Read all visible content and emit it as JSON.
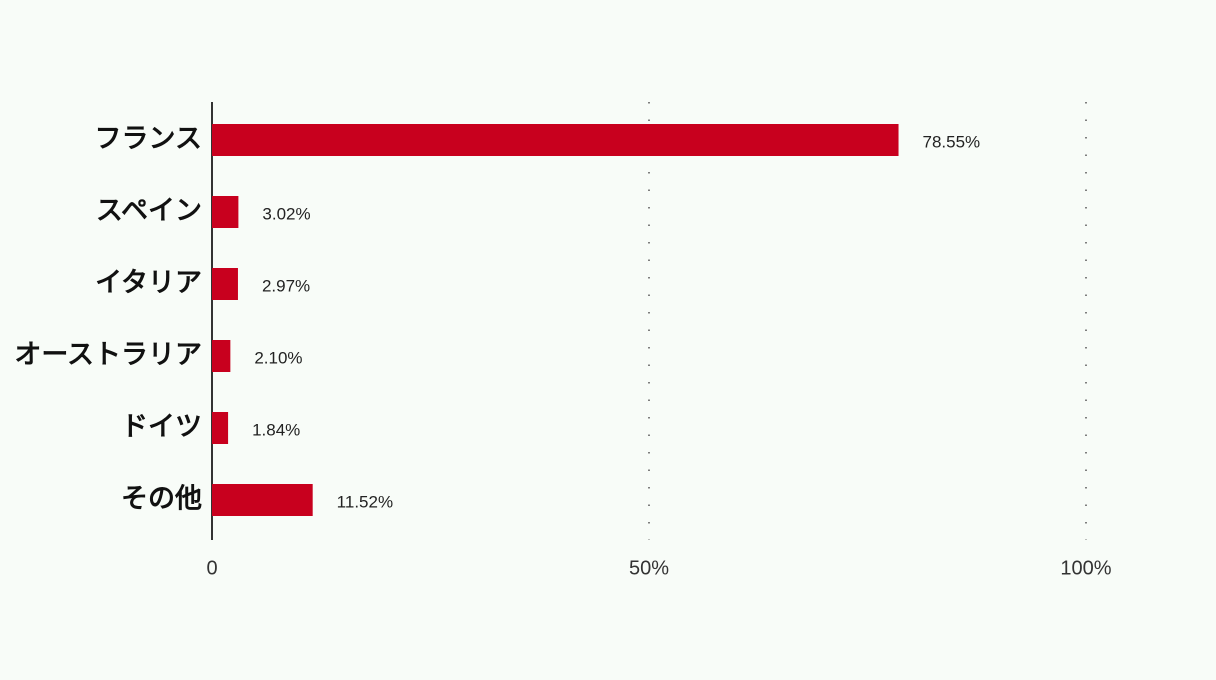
{
  "chart_data": {
    "type": "bar",
    "orientation": "horizontal",
    "categories": [
      "フランス",
      "スペイン",
      "イタリア",
      "オーストラリア",
      "ドイツ",
      "その他"
    ],
    "values": [
      78.55,
      3.02,
      2.97,
      2.1,
      1.84,
      11.52
    ],
    "value_labels": [
      "78.55%",
      "3.02%",
      "2.97%",
      "2.10%",
      "1.84%",
      "11.52%"
    ],
    "color": "#c8001e",
    "xlim": [
      0,
      100
    ],
    "xticks": [
      0,
      {
        "value": 50,
        "label": "50%"
      },
      {
        "value": 100,
        "label": "100%"
      }
    ],
    "grid": true
  }
}
